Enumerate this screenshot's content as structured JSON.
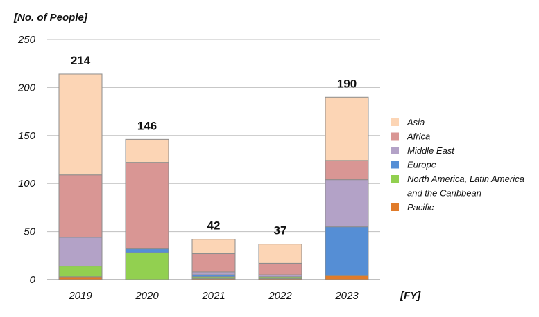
{
  "chart_data": {
    "type": "bar",
    "stacked": true,
    "ylabel": "[No. of People]",
    "xlabel": "[FY]",
    "ylim": [
      0,
      250
    ],
    "yticks": [
      0,
      50,
      100,
      150,
      200,
      250
    ],
    "categories": [
      "2019",
      "2020",
      "2021",
      "2022",
      "2023"
    ],
    "totals": [
      214,
      146,
      42,
      37,
      190
    ],
    "series": [
      {
        "name": "Pacific",
        "color": "#e07b2a",
        "values": [
          3,
          0,
          1,
          1,
          4
        ]
      },
      {
        "name": "North America, Latin America and the Caribbean",
        "color": "#92d050",
        "values": [
          11,
          28,
          2,
          2,
          0
        ]
      },
      {
        "name": "Europe",
        "color": "#558ed5",
        "values": [
          0,
          4,
          2,
          0,
          51
        ]
      },
      {
        "name": "Middle East",
        "color": "#b3a2c7",
        "values": [
          30,
          0,
          3,
          2,
          49
        ]
      },
      {
        "name": "Africa",
        "color": "#d99694",
        "values": [
          65,
          90,
          19,
          12,
          20
        ]
      },
      {
        "name": "Asia",
        "color": "#fcd5b5",
        "values": [
          105,
          24,
          15,
          20,
          66
        ]
      }
    ],
    "legend": {
      "position": "right",
      "order": [
        "Asia",
        "Africa",
        "Middle East",
        "Europe",
        "North America, Latin America and the Caribbean",
        "Pacific"
      ],
      "lines": [
        [
          "Asia"
        ],
        [
          "Africa"
        ],
        [
          "Middle East"
        ],
        [
          "Europe"
        ],
        [
          "North America, Latin America",
          "and the Caribbean"
        ],
        [
          "Pacific"
        ]
      ]
    },
    "grid": true
  }
}
